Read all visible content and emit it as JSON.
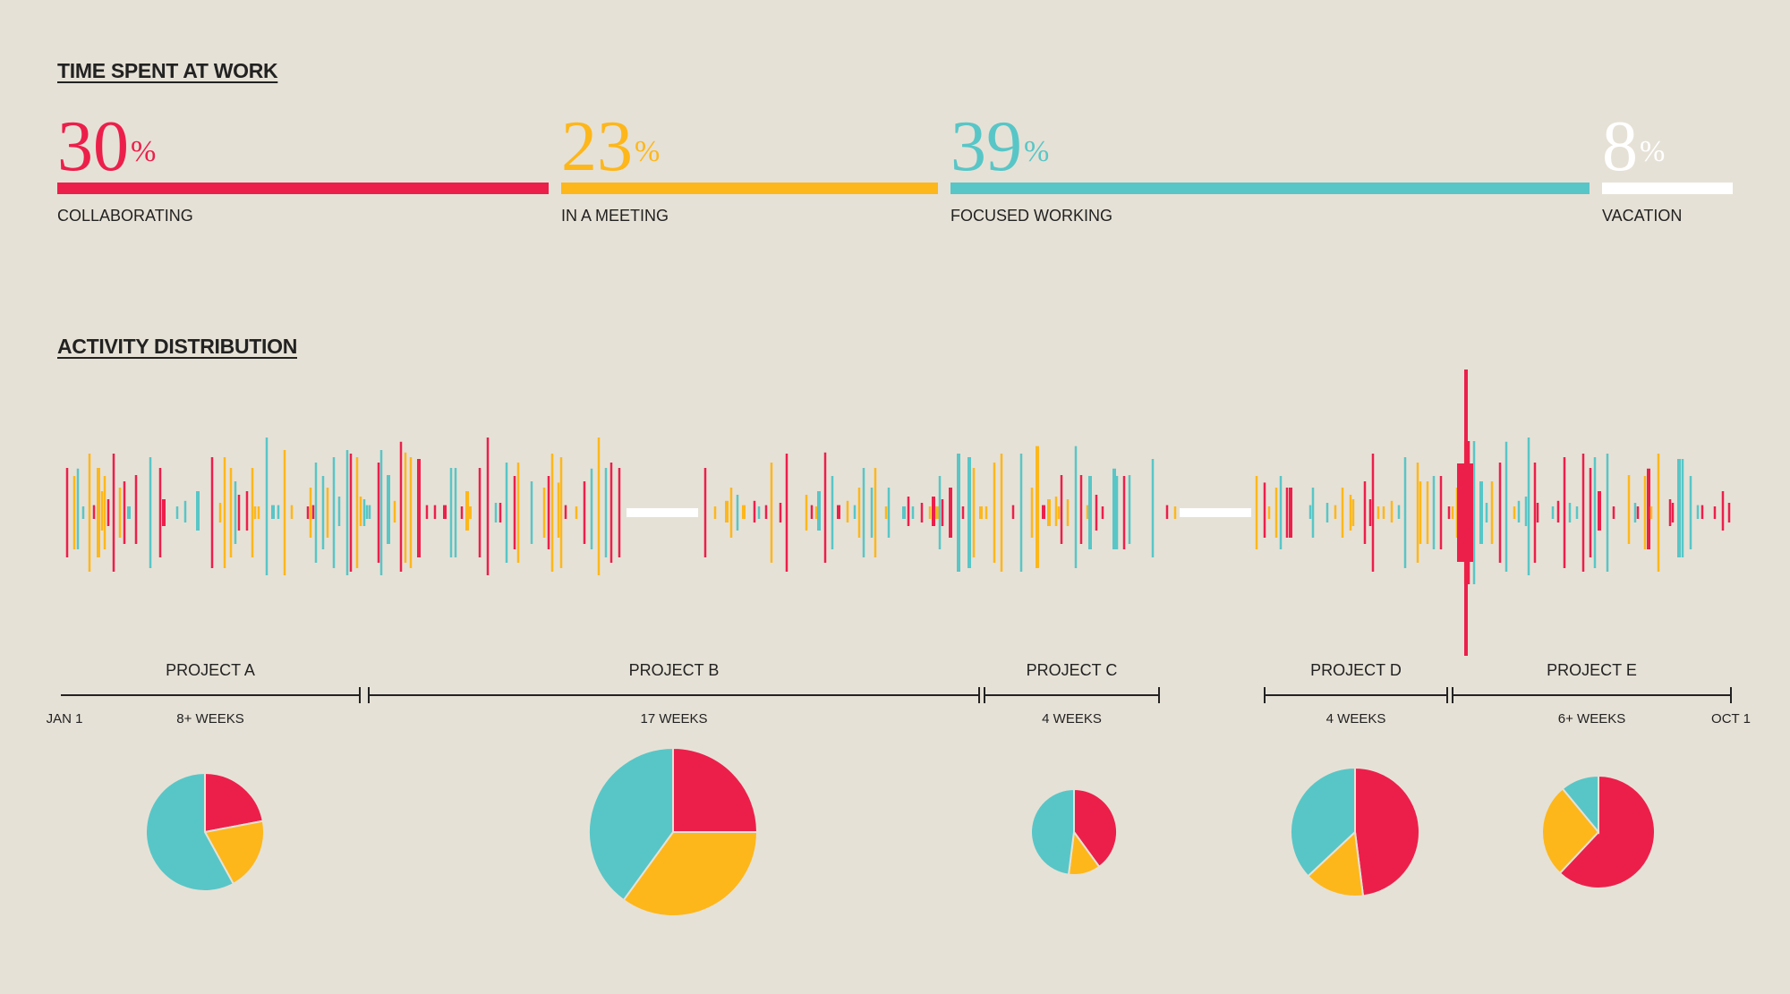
{
  "colors": {
    "background": "#e6e1d6",
    "collaborating": "#ec1f4b",
    "meeting": "#fdb71b",
    "focused": "#58c6c7",
    "vacation": "#ffffff",
    "ink": "#222222"
  },
  "sections": {
    "time_spent": "TIME SPENT AT WORK",
    "activity": "ACTIVITY DISTRIBUTION"
  },
  "timeline_labels": {
    "start": "JAN 1",
    "end": "OCT 1"
  },
  "chart_data": [
    {
      "type": "bar",
      "title": "TIME SPENT AT WORK",
      "unit": "%",
      "categories": [
        "COLLABORATING",
        "IN A MEETING",
        "FOCUSED WORKING",
        "VACATION"
      ],
      "values": [
        30,
        23,
        39,
        8
      ],
      "series_colors": [
        "#ec1f4b",
        "#fdb71b",
        "#58c6c7",
        "#ffffff"
      ]
    },
    {
      "type": "bar",
      "title": "ACTIVITY DISTRIBUTION",
      "x_start": "JAN 1",
      "x_end": "OCT 1",
      "projects": [
        {
          "label": "PROJECT A",
          "duration": "8+ WEEKS"
        },
        {
          "label": "PROJECT B",
          "duration": "17 WEEKS"
        },
        {
          "label": "PROJECT C",
          "duration": "4 WEEKS"
        },
        {
          "label": "PROJECT D",
          "duration": "4 WEEKS"
        },
        {
          "label": "PROJECT E",
          "duration": "6+ WEEKS"
        }
      ]
    },
    {
      "type": "pie",
      "categories": [
        "COLLABORATING",
        "IN A MEETING",
        "FOCUSED WORKING"
      ],
      "series": [
        {
          "values": [
            22,
            20,
            58
          ]
        },
        {
          "values": [
            25,
            35,
            40
          ]
        },
        {
          "values": [
            40,
            12,
            48
          ]
        },
        {
          "values": [
            48,
            15,
            37
          ]
        },
        {
          "values": [
            62,
            27,
            11
          ]
        }
      ]
    }
  ]
}
